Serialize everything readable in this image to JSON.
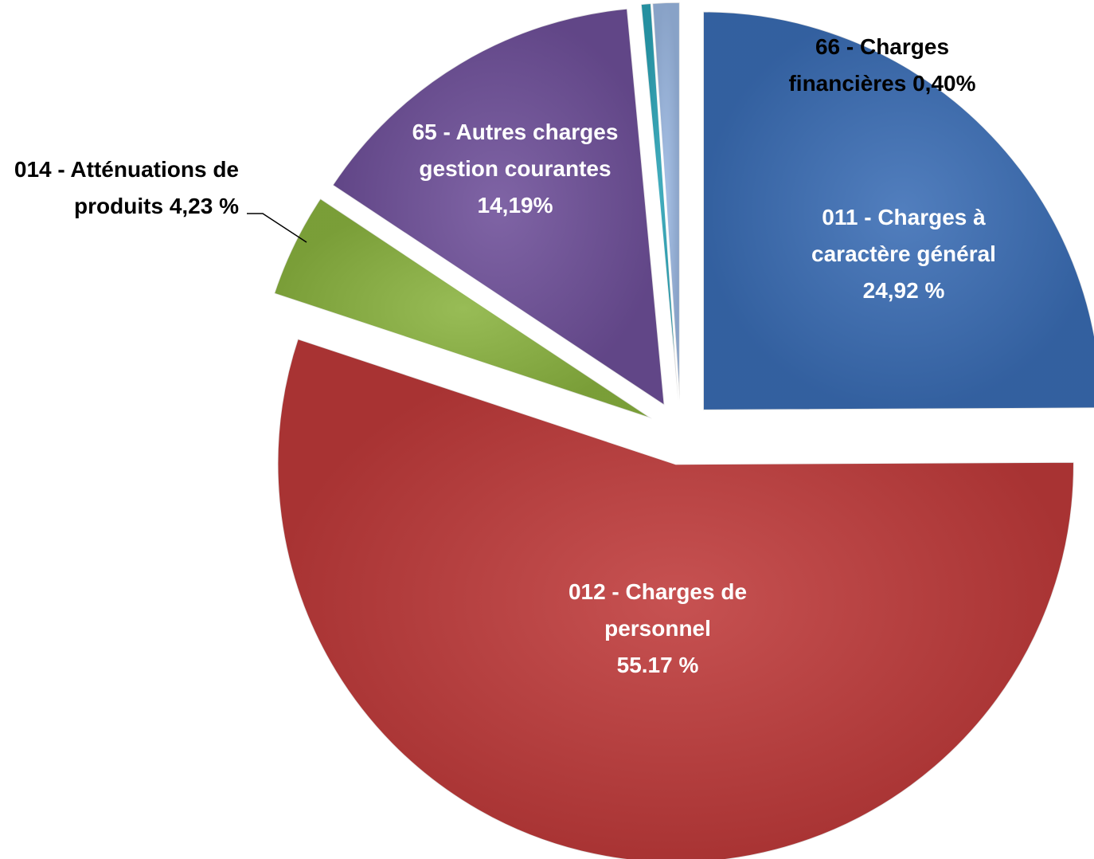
{
  "chart_data": {
    "type": "pie",
    "categories": [
      "011 - Charges à caractère général",
      "012 - Charges de personnel",
      "014 - Atténuations de produits",
      "65 - Autres charges gestion courantes",
      "66 - Charges financières",
      null
    ],
    "values": [
      24.92,
      55.17,
      4.23,
      14.19,
      0.4,
      1.09
    ],
    "value_labels": [
      "24,92 %",
      "55.17 %",
      "4,23 %",
      "14,19%",
      "0,40%",
      null
    ],
    "colors": [
      "#3a6db5",
      "#bf3a3a",
      "#8ab33f",
      "#6e4f99",
      "#2aa3b6",
      "#9bb8e2"
    ]
  }
}
